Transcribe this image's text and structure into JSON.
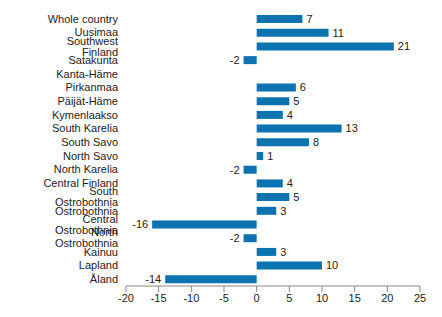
{
  "chart_data": {
    "type": "bar",
    "orientation": "horizontal",
    "categories": [
      "Whole country",
      "Uusimaa",
      "Southwest Finland",
      "Satakunta",
      "Kanta-Häme",
      "Pirkanmaa",
      "Päijät-Häme",
      "Kymenlaakso",
      "South Karelia",
      "South Savo",
      "North Savo",
      "North Karelia",
      "Central Finland",
      "South Ostrobothnia",
      "Ostrobothnia",
      "Central Ostrobothnia",
      "North Ostrobothnia",
      "Kainuu",
      "Lapland",
      "Åland"
    ],
    "values": [
      7,
      11,
      21,
      -2,
      0,
      6,
      5,
      4,
      13,
      8,
      1,
      -2,
      4,
      5,
      3,
      -16,
      -2,
      3,
      10,
      -14
    ],
    "color": "#0b73b0",
    "xlim": [
      -20,
      25
    ],
    "xticks": [
      -20,
      -15,
      -10,
      -5,
      0,
      5,
      10,
      15,
      20,
      25
    ],
    "grid": false,
    "data_labels": true
  }
}
